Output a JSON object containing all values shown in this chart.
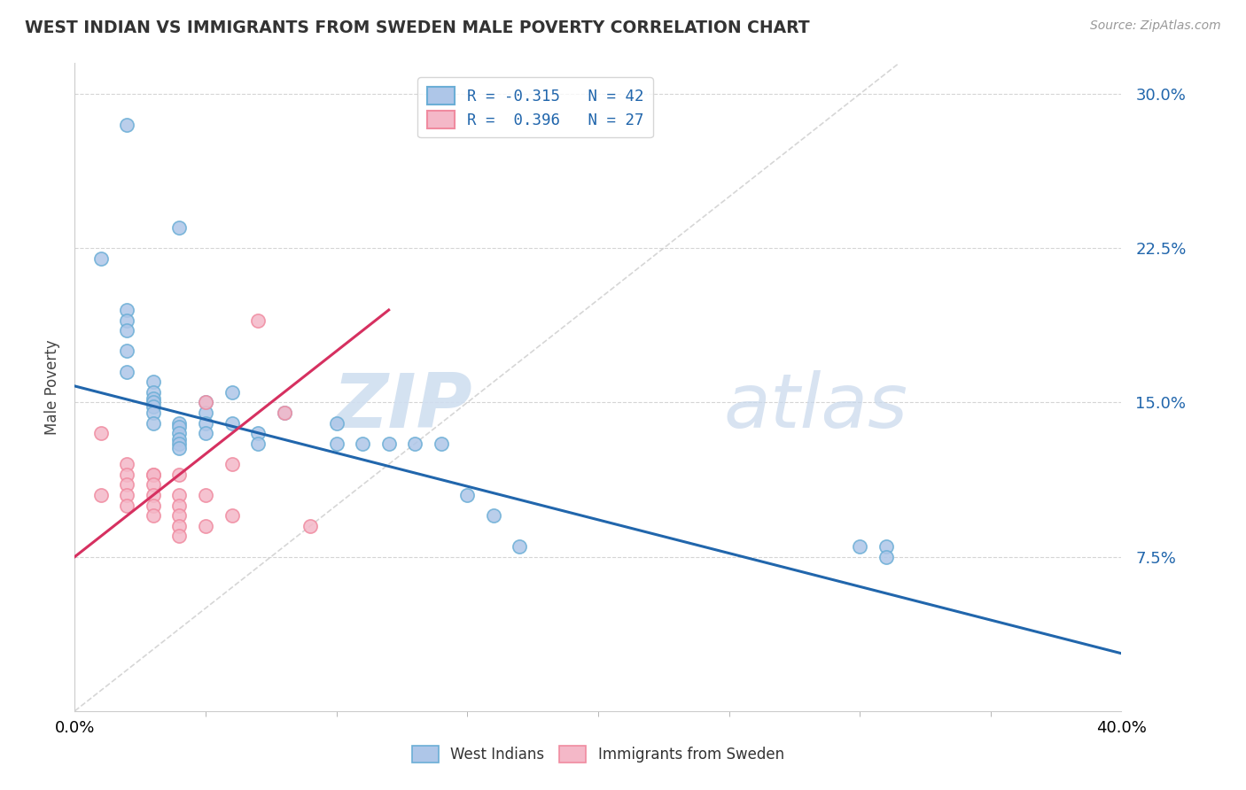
{
  "title": "WEST INDIAN VS IMMIGRANTS FROM SWEDEN MALE POVERTY CORRELATION CHART",
  "source": "Source: ZipAtlas.com",
  "ylabel": "Male Poverty",
  "y_ticks": [
    "7.5%",
    "15.0%",
    "22.5%",
    "30.0%"
  ],
  "y_tick_vals": [
    0.075,
    0.15,
    0.225,
    0.3
  ],
  "x_tick_left_label": "0.0%",
  "x_tick_right_label": "40.0%",
  "xlim": [
    0.0,
    0.4
  ],
  "ylim": [
    0.0,
    0.315
  ],
  "blue_color": "#aec6e8",
  "pink_color": "#f4b8c8",
  "blue_edge_color": "#6baed6",
  "pink_edge_color": "#f08ba0",
  "blue_line_color": "#2166ac",
  "pink_line_color": "#d63060",
  "diag_line_color": "#cccccc",
  "watermark_zip": "ZIP",
  "watermark_atlas": "atlas",
  "legend_entries": [
    {
      "label": "R = -0.315   N = 42",
      "color": "#aec6e8",
      "edge": "#6baed6"
    },
    {
      "label": "R =  0.396   N = 27",
      "color": "#f4b8c8",
      "edge": "#f08ba0"
    }
  ],
  "legend_text_color": "#2166ac",
  "blue_scatter_x": [
    0.02,
    0.04,
    0.01,
    0.02,
    0.02,
    0.02,
    0.02,
    0.02,
    0.03,
    0.03,
    0.03,
    0.03,
    0.03,
    0.03,
    0.03,
    0.04,
    0.04,
    0.04,
    0.04,
    0.04,
    0.04,
    0.05,
    0.05,
    0.05,
    0.05,
    0.06,
    0.06,
    0.07,
    0.07,
    0.08,
    0.1,
    0.1,
    0.11,
    0.12,
    0.13,
    0.14,
    0.15,
    0.16,
    0.17,
    0.3,
    0.31,
    0.31
  ],
  "blue_scatter_y": [
    0.285,
    0.235,
    0.22,
    0.195,
    0.19,
    0.185,
    0.175,
    0.165,
    0.16,
    0.155,
    0.152,
    0.15,
    0.148,
    0.145,
    0.14,
    0.14,
    0.138,
    0.135,
    0.132,
    0.13,
    0.128,
    0.15,
    0.145,
    0.14,
    0.135,
    0.155,
    0.14,
    0.135,
    0.13,
    0.145,
    0.14,
    0.13,
    0.13,
    0.13,
    0.13,
    0.13,
    0.105,
    0.095,
    0.08,
    0.08,
    0.08,
    0.075
  ],
  "pink_scatter_x": [
    0.01,
    0.01,
    0.02,
    0.02,
    0.02,
    0.02,
    0.02,
    0.03,
    0.03,
    0.03,
    0.03,
    0.03,
    0.03,
    0.04,
    0.04,
    0.04,
    0.04,
    0.04,
    0.04,
    0.05,
    0.05,
    0.05,
    0.06,
    0.06,
    0.07,
    0.08,
    0.09
  ],
  "pink_scatter_y": [
    0.135,
    0.105,
    0.12,
    0.115,
    0.11,
    0.105,
    0.1,
    0.115,
    0.115,
    0.11,
    0.105,
    0.1,
    0.095,
    0.115,
    0.105,
    0.1,
    0.095,
    0.09,
    0.085,
    0.15,
    0.105,
    0.09,
    0.12,
    0.095,
    0.19,
    0.145,
    0.09
  ],
  "blue_line_x": [
    0.0,
    0.4
  ],
  "blue_line_y": [
    0.158,
    0.028
  ],
  "pink_line_x": [
    0.0,
    0.12
  ],
  "pink_line_y": [
    0.075,
    0.195
  ],
  "diag_line_x": [
    0.0,
    0.315
  ],
  "diag_line_y": [
    0.0,
    0.315
  ],
  "background_color": "#ffffff",
  "grid_color": "#d5d5d5",
  "x_minor_ticks": [
    0.05,
    0.1,
    0.15,
    0.2,
    0.25,
    0.3,
    0.35
  ]
}
